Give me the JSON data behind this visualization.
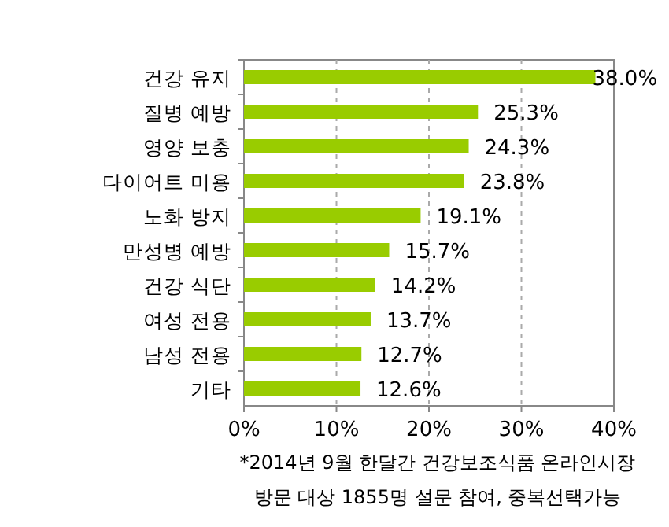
{
  "chart_data": {
    "type": "bar",
    "orientation": "horizontal",
    "categories": [
      "건강 유지",
      "질병 예방",
      "영양 보충",
      "다이어트 미용",
      "노화 방지",
      "만성병 예방",
      "건강 식단",
      "여성 전용",
      "남성 전용",
      "기타"
    ],
    "values": [
      38.0,
      25.3,
      24.3,
      23.8,
      19.1,
      15.7,
      14.2,
      13.7,
      12.7,
      12.6
    ],
    "value_labels": [
      "38.0%",
      "25.3%",
      "24.3%",
      "23.8%",
      "19.1%",
      "15.7%",
      "14.2%",
      "13.7%",
      "12.7%",
      "12.6%"
    ],
    "color": "#99cc00",
    "xlim": [
      0,
      40
    ],
    "xticks": [
      {
        "value": 0,
        "label": "0%"
      },
      {
        "value": 10,
        "label": "10%"
      },
      {
        "value": 20,
        "label": "20%"
      },
      {
        "value": 30,
        "label": "30%"
      },
      {
        "value": 40,
        "label": "40%"
      }
    ],
    "grid": "x",
    "annotations": [
      "*2014년 9월 한달간 건강보조식품 온라인시장",
      "방문 대상 1855명 설문 참여, 중복선택가능"
    ]
  }
}
